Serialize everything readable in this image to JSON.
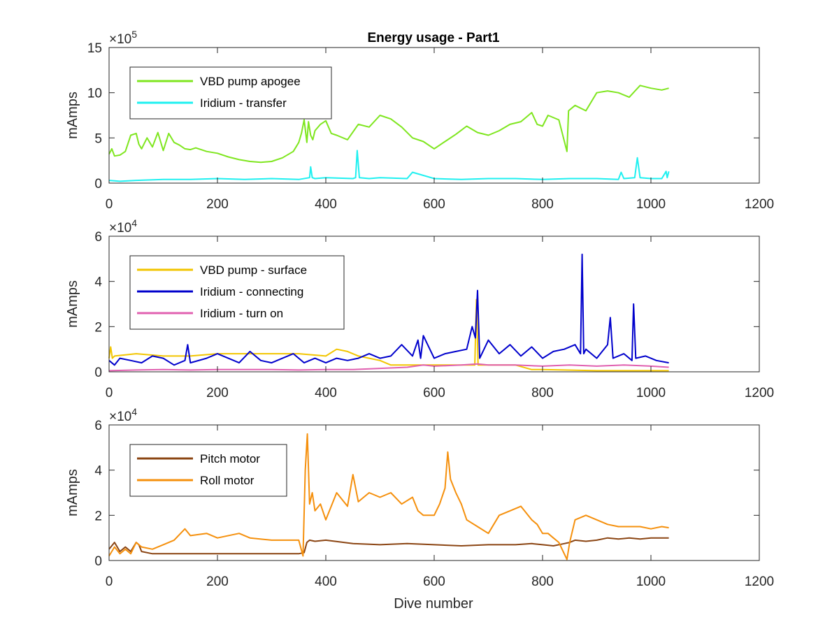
{
  "figure": {
    "title": "Energy usage - Part1",
    "xlabel": "Dive number"
  },
  "chart_data": [
    {
      "type": "line",
      "title": "Energy usage - Part1",
      "ylabel": "mAmps",
      "xlabel": "",
      "xlim": [
        0,
        1200
      ],
      "ylim": [
        0,
        15
      ],
      "exponent_label": "×10",
      "exponent_power": "5",
      "xticks": [
        0,
        200,
        400,
        600,
        800,
        1000,
        1200
      ],
      "yticks": [
        0,
        5,
        10,
        15
      ],
      "legend_location": "top-left",
      "series": [
        {
          "name": "VBD pump apogee",
          "color": "#7FE61F",
          "x": [
            0,
            5,
            10,
            20,
            30,
            40,
            50,
            55,
            60,
            70,
            80,
            90,
            100,
            110,
            120,
            130,
            140,
            150,
            160,
            180,
            200,
            220,
            240,
            260,
            280,
            300,
            320,
            340,
            350,
            355,
            360,
            365,
            368,
            372,
            376,
            380,
            390,
            400,
            410,
            420,
            440,
            460,
            480,
            500,
            520,
            540,
            560,
            580,
            600,
            620,
            640,
            660,
            680,
            700,
            720,
            740,
            760,
            780,
            790,
            800,
            810,
            830,
            845,
            848,
            860,
            880,
            900,
            920,
            940,
            960,
            980,
            1000,
            1020,
            1033
          ],
          "y": [
            3.2,
            3.8,
            3.0,
            3.1,
            3.5,
            5.3,
            5.5,
            4.3,
            3.8,
            5.0,
            4.0,
            5.6,
            3.6,
            5.5,
            4.5,
            4.2,
            3.8,
            3.7,
            3.9,
            3.5,
            3.3,
            2.9,
            2.6,
            2.4,
            2.3,
            2.4,
            2.8,
            3.5,
            4.5,
            5.5,
            7.0,
            4.5,
            6.8,
            5.3,
            4.8,
            5.8,
            6.5,
            6.9,
            5.5,
            5.3,
            4.8,
            6.5,
            6.2,
            7.5,
            7.1,
            6.2,
            5.0,
            4.6,
            3.8,
            4.6,
            5.4,
            6.3,
            5.6,
            5.3,
            5.8,
            6.5,
            6.8,
            7.8,
            6.5,
            6.3,
            7.5,
            7.0,
            3.5,
            8.0,
            8.6,
            8.0,
            10.0,
            10.2,
            10.0,
            9.5,
            10.8,
            10.5,
            10.3,
            10.5
          ]
        },
        {
          "name": "Iridium - transfer",
          "color": "#1FF0F0",
          "x": [
            0,
            20,
            50,
            100,
            150,
            200,
            250,
            300,
            350,
            370,
            372,
            375,
            380,
            400,
            450,
            455,
            458,
            462,
            480,
            500,
            550,
            560,
            600,
            650,
            700,
            750,
            800,
            850,
            900,
            940,
            945,
            950,
            970,
            975,
            980,
            1000,
            1020,
            1028,
            1030,
            1033
          ],
          "y": [
            0.3,
            0.2,
            0.3,
            0.4,
            0.4,
            0.5,
            0.4,
            0.5,
            0.4,
            0.6,
            1.8,
            0.6,
            0.5,
            0.6,
            0.5,
            0.6,
            3.6,
            0.6,
            0.5,
            0.6,
            0.5,
            1.2,
            0.5,
            0.4,
            0.5,
            0.5,
            0.4,
            0.5,
            0.5,
            0.4,
            1.2,
            0.5,
            0.6,
            2.8,
            0.6,
            0.5,
            0.5,
            1.3,
            0.6,
            1.3
          ]
        }
      ]
    },
    {
      "type": "line",
      "title": "",
      "ylabel": "mAmps",
      "xlabel": "",
      "xlim": [
        0,
        1200
      ],
      "ylim": [
        0,
        6
      ],
      "exponent_label": "×10",
      "exponent_power": "4",
      "xticks": [
        0,
        200,
        400,
        600,
        800,
        1000,
        1200
      ],
      "yticks": [
        0,
        2,
        4,
        6
      ],
      "legend_location": "top-left",
      "series": [
        {
          "name": "VBD pump - surface",
          "color": "#F2C500",
          "x": [
            0,
            3,
            6,
            10,
            50,
            100,
            150,
            200,
            250,
            300,
            350,
            400,
            420,
            440,
            460,
            480,
            500,
            520,
            560,
            600,
            650,
            675,
            678,
            681,
            700,
            750,
            780,
            800,
            900,
            1000,
            1033
          ],
          "y": [
            0.6,
            1.1,
            0.6,
            0.7,
            0.8,
            0.7,
            0.7,
            0.8,
            0.8,
            0.8,
            0.8,
            0.7,
            1.0,
            0.9,
            0.7,
            0.6,
            0.5,
            0.3,
            0.3,
            0.3,
            0.3,
            0.3,
            3.2,
            0.3,
            0.3,
            0.3,
            0.1,
            0.1,
            0.05,
            0.05,
            0.05
          ]
        },
        {
          "name": "Iridium - connecting",
          "color": "#0000CC",
          "x": [
            0,
            10,
            20,
            40,
            60,
            80,
            100,
            120,
            140,
            145,
            150,
            180,
            200,
            220,
            240,
            260,
            280,
            300,
            320,
            340,
            360,
            380,
            400,
            420,
            440,
            460,
            480,
            500,
            520,
            540,
            560,
            570,
            575,
            580,
            600,
            620,
            640,
            660,
            670,
            676,
            680,
            684,
            700,
            720,
            740,
            760,
            780,
            800,
            820,
            840,
            860,
            870,
            873,
            876,
            880,
            900,
            920,
            925,
            930,
            950,
            965,
            968,
            972,
            990,
            1010,
            1033
          ],
          "y": [
            0.5,
            0.3,
            0.6,
            0.5,
            0.4,
            0.7,
            0.6,
            0.3,
            0.5,
            1.2,
            0.4,
            0.6,
            0.8,
            0.6,
            0.4,
            0.9,
            0.5,
            0.4,
            0.6,
            0.8,
            0.4,
            0.6,
            0.4,
            0.6,
            0.5,
            0.6,
            0.8,
            0.6,
            0.7,
            1.2,
            0.7,
            1.4,
            0.6,
            1.6,
            0.6,
            0.8,
            0.9,
            1.0,
            2.0,
            1.5,
            3.6,
            0.6,
            1.4,
            0.8,
            1.2,
            0.7,
            1.1,
            0.6,
            0.9,
            1.0,
            1.2,
            0.8,
            5.2,
            0.8,
            1.0,
            0.6,
            1.2,
            2.4,
            0.6,
            0.8,
            0.5,
            3.0,
            0.6,
            0.7,
            0.5,
            0.4
          ]
        },
        {
          "name": "Iridium - turn on",
          "color": "#E060B0",
          "x": [
            0,
            50,
            100,
            150,
            200,
            250,
            300,
            350,
            400,
            450,
            500,
            550,
            580,
            600,
            650,
            680,
            700,
            750,
            800,
            850,
            900,
            950,
            1000,
            1033
          ],
          "y": [
            0.05,
            0.08,
            0.1,
            0.08,
            0.1,
            0.1,
            0.1,
            0.08,
            0.1,
            0.1,
            0.15,
            0.2,
            0.3,
            0.25,
            0.3,
            0.35,
            0.3,
            0.3,
            0.25,
            0.3,
            0.25,
            0.3,
            0.25,
            0.2
          ]
        }
      ]
    },
    {
      "type": "line",
      "title": "",
      "ylabel": "mAmps",
      "xlabel": "Dive number",
      "xlim": [
        0,
        1200
      ],
      "ylim": [
        0,
        6
      ],
      "exponent_label": "×10",
      "exponent_power": "4",
      "xticks": [
        0,
        200,
        400,
        600,
        800,
        1000,
        1200
      ],
      "yticks": [
        0,
        2,
        4,
        6
      ],
      "legend_location": "top-left",
      "series": [
        {
          "name": "Pitch motor",
          "color": "#8B4513",
          "x": [
            0,
            10,
            20,
            30,
            40,
            50,
            55,
            60,
            80,
            100,
            150,
            200,
            250,
            300,
            350,
            360,
            365,
            370,
            380,
            400,
            450,
            500,
            550,
            600,
            650,
            700,
            750,
            780,
            800,
            820,
            840,
            850,
            860,
            880,
            900,
            920,
            940,
            960,
            980,
            1000,
            1020,
            1033
          ],
          "y": [
            0.5,
            0.8,
            0.4,
            0.6,
            0.4,
            0.8,
            0.7,
            0.4,
            0.3,
            0.3,
            0.3,
            0.3,
            0.3,
            0.3,
            0.3,
            0.35,
            0.8,
            0.9,
            0.85,
            0.9,
            0.75,
            0.7,
            0.75,
            0.7,
            0.65,
            0.7,
            0.7,
            0.75,
            0.7,
            0.65,
            0.75,
            0.8,
            0.9,
            0.85,
            0.9,
            1.0,
            0.95,
            1.0,
            0.95,
            1.0,
            1.0,
            1.0
          ]
        },
        {
          "name": "Roll motor",
          "color": "#F5900D",
          "x": [
            0,
            10,
            20,
            30,
            40,
            50,
            60,
            80,
            100,
            120,
            140,
            150,
            180,
            200,
            240,
            260,
            300,
            330,
            350,
            358,
            362,
            366,
            370,
            375,
            380,
            390,
            400,
            420,
            440,
            450,
            460,
            480,
            500,
            520,
            540,
            560,
            570,
            580,
            600,
            610,
            620,
            625,
            630,
            640,
            650,
            660,
            680,
            700,
            720,
            740,
            760,
            780,
            790,
            800,
            810,
            820,
            830,
            840,
            845,
            850,
            860,
            870,
            880,
            900,
            920,
            940,
            960,
            980,
            1000,
            1020,
            1033
          ],
          "y": [
            0.2,
            0.6,
            0.3,
            0.5,
            0.3,
            0.8,
            0.6,
            0.5,
            0.7,
            0.9,
            1.4,
            1.1,
            1.2,
            1.0,
            1.2,
            1.0,
            0.9,
            0.9,
            0.9,
            0.2,
            4.0,
            5.6,
            2.5,
            3.0,
            2.2,
            2.5,
            1.8,
            3.0,
            2.4,
            3.8,
            2.6,
            3.0,
            2.8,
            3.0,
            2.5,
            2.8,
            2.2,
            2.0,
            2.0,
            2.5,
            3.2,
            4.8,
            3.6,
            3.0,
            2.5,
            1.8,
            1.5,
            1.2,
            2.0,
            2.2,
            2.4,
            1.8,
            1.6,
            1.2,
            1.2,
            1.0,
            0.8,
            0.3,
            0.05,
            0.8,
            1.8,
            1.9,
            2.0,
            1.8,
            1.6,
            1.5,
            1.5,
            1.5,
            1.4,
            1.5,
            1.45
          ]
        }
      ]
    }
  ]
}
